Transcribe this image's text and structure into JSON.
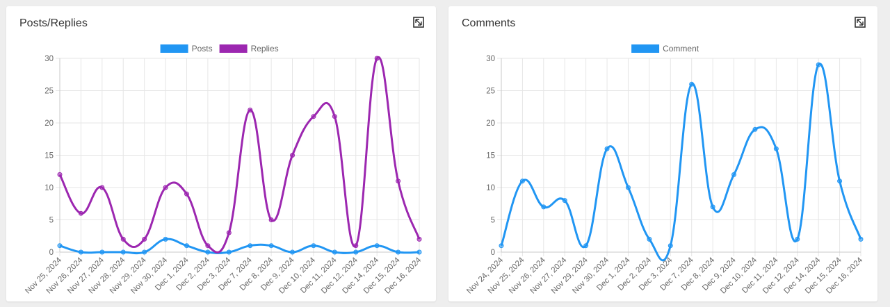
{
  "colors": {
    "posts": "#2196f3",
    "replies": "#9c27b0",
    "comment": "#2196f3"
  },
  "icons": {
    "expand": "expand-icon"
  },
  "cards": [
    {
      "title": "Posts/Replies"
    },
    {
      "title": "Comments"
    }
  ],
  "chart_data": [
    {
      "type": "line",
      "categories": [
        "Nov 25, 2024",
        "Nov 26, 2024",
        "Nov 27, 2024",
        "Nov 28, 2024",
        "Nov 29, 2024",
        "Nov 30, 2024",
        "Dec 1, 2024",
        "Dec 2, 2024",
        "Dec 3, 2024",
        "Dec 7, 2024",
        "Dec 8, 2024",
        "Dec 9, 2024",
        "Dec 10, 2024",
        "Dec 11, 2024",
        "Dec 12, 2024",
        "Dec 14, 2024",
        "Dec 15, 2024",
        "Dec 16, 2024"
      ],
      "series": [
        {
          "name": "Posts",
          "color": "#2196f3",
          "values": [
            1,
            0,
            0,
            0,
            0,
            2,
            1,
            0,
            0,
            1,
            1,
            0,
            1,
            0,
            0,
            1,
            0,
            0
          ]
        },
        {
          "name": "Replies",
          "color": "#9c27b0",
          "values": [
            12,
            6,
            10,
            2,
            2,
            10,
            9,
            1,
            3,
            22,
            5,
            15,
            21,
            21,
            1,
            30,
            11,
            2
          ]
        }
      ],
      "ylim": [
        0,
        30
      ],
      "yticks": [
        "0",
        "5",
        "10",
        "15",
        "20",
        "25",
        "30"
      ],
      "grid": true,
      "legend": "top"
    },
    {
      "type": "line",
      "categories": [
        "Nov 24, 2024",
        "Nov 25, 2024",
        "Nov 26, 2024",
        "Nov 27, 2024",
        "Nov 29, 2024",
        "Nov 30, 2024",
        "Dec 1, 2024",
        "Dec 2, 2024",
        "Dec 3, 2024",
        "Dec 7, 2024",
        "Dec 8, 2024",
        "Dec 9, 2024",
        "Dec 10, 2024",
        "Dec 11, 2024",
        "Dec 12, 2024",
        "Dec 14, 2024",
        "Dec 15, 2024",
        "Dec 16, 2024"
      ],
      "series": [
        {
          "name": "Comment",
          "color": "#2196f3",
          "values": [
            1,
            11,
            7,
            8,
            1,
            16,
            10,
            2,
            1,
            26,
            7,
            12,
            19,
            16,
            2,
            29,
            11,
            2
          ]
        }
      ],
      "ylim": [
        0,
        30
      ],
      "yticks": [
        "0",
        "5",
        "10",
        "15",
        "20",
        "25",
        "30"
      ],
      "grid": true,
      "legend": "top"
    }
  ]
}
